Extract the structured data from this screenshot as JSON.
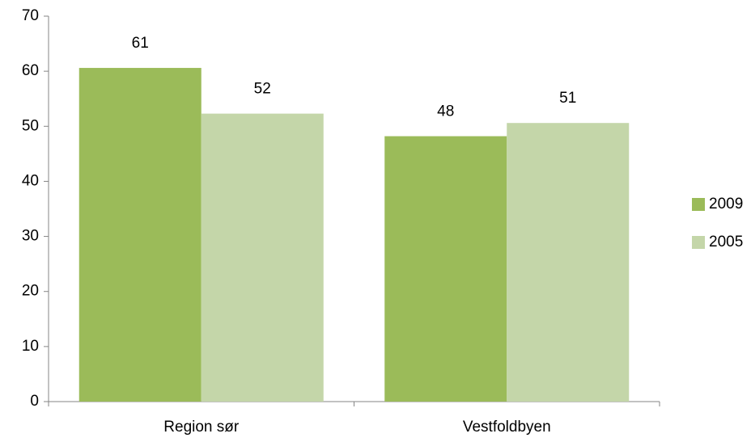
{
  "chart_data": {
    "type": "bar",
    "categories": [
      "Region sør",
      "Vestfoldbyen"
    ],
    "series": [
      {
        "name": "2009",
        "color": "#9bbb59",
        "values": [
          60.6,
          48.2
        ],
        "value_labels": [
          "61",
          "48"
        ]
      },
      {
        "name": "2005",
        "color": "#c4d6a9",
        "values": [
          52.3,
          50.6
        ],
        "value_labels": [
          "52",
          "51"
        ]
      }
    ],
    "ylim": [
      0,
      70
    ],
    "yticks": [
      0,
      10,
      20,
      30,
      40,
      50,
      60,
      70
    ],
    "grid": false,
    "legend": "right"
  }
}
